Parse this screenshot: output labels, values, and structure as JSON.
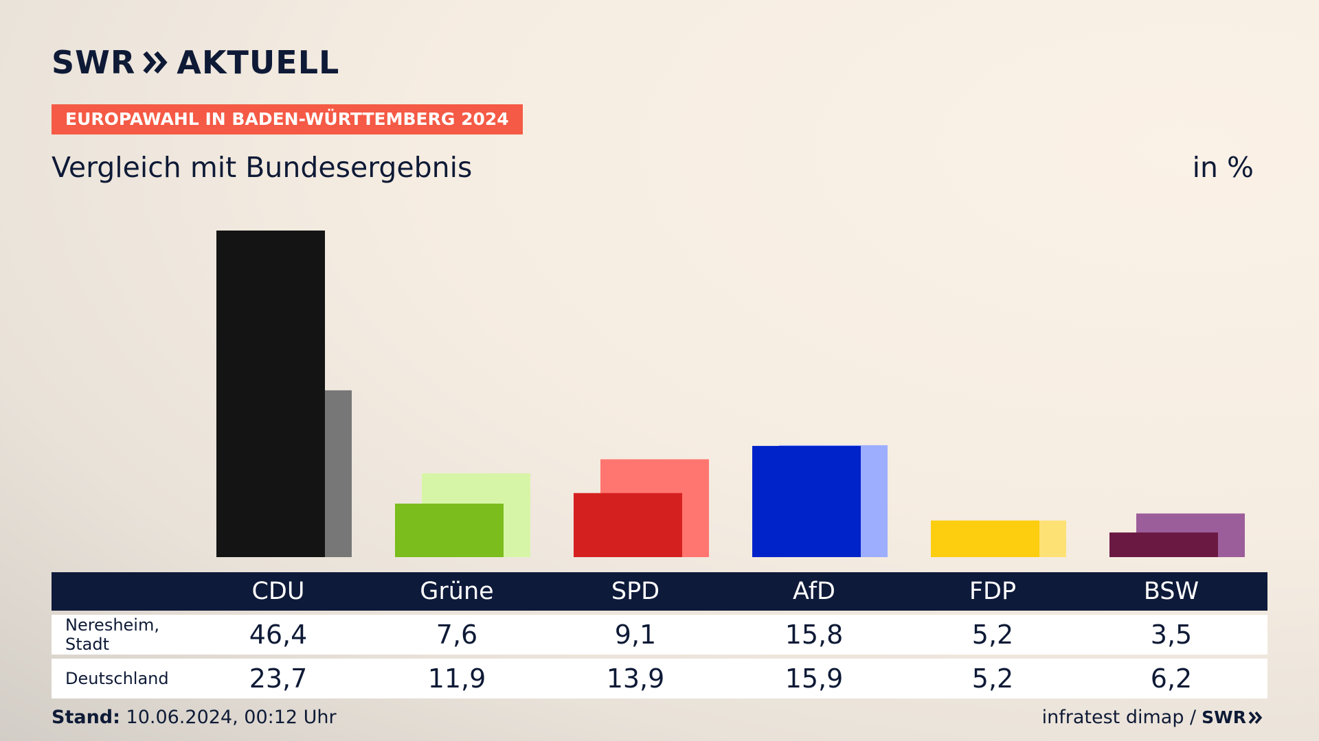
{
  "brand": {
    "logo_word": "SWR",
    "logo_section": "AKTUELL"
  },
  "banner": "EUROPAWAHL IN BADEN-WÜRTTEMBERG 2024",
  "subtitle": "Vergleich mit Bundesergebnis",
  "unit": "in %",
  "table": {
    "rows": [
      {
        "label": "Neresheim, Stadt",
        "values": [
          "46,4",
          "7,6",
          "9,1",
          "15,8",
          "5,2",
          "3,5"
        ]
      },
      {
        "label": "Deutschland",
        "values": [
          "23,7",
          "11,9",
          "13,9",
          "15,9",
          "5,2",
          "6,2"
        ]
      }
    ]
  },
  "footer": {
    "stand_label": "Stand:",
    "stand_value": "10.06.2024, 00:12 Uhr",
    "source": "infratest dimap /",
    "logo_word": "SWR"
  },
  "chart_data": {
    "type": "bar",
    "categories": [
      "CDU",
      "Grüne",
      "SPD",
      "AfD",
      "FDP",
      "BSW"
    ],
    "series": [
      {
        "name": "Neresheim, Stadt",
        "values": [
          46.4,
          7.6,
          9.1,
          15.8,
          5.2,
          3.5
        ]
      },
      {
        "name": "Deutschland",
        "values": [
          23.7,
          11.9,
          13.9,
          15.9,
          5.2,
          6.2
        ]
      }
    ],
    "colors": {
      "local": [
        "#141414",
        "#7abd1c",
        "#d52020",
        "#0022c9",
        "#fdcd10",
        "#6a1942"
      ],
      "national": [
        "#777777",
        "#d7f5a6",
        "#ff7670",
        "#9daeff",
        "#fee175",
        "#9c5e9a"
      ]
    },
    "ylim": [
      0,
      46.4
    ],
    "grid": false,
    "legend": "none"
  }
}
